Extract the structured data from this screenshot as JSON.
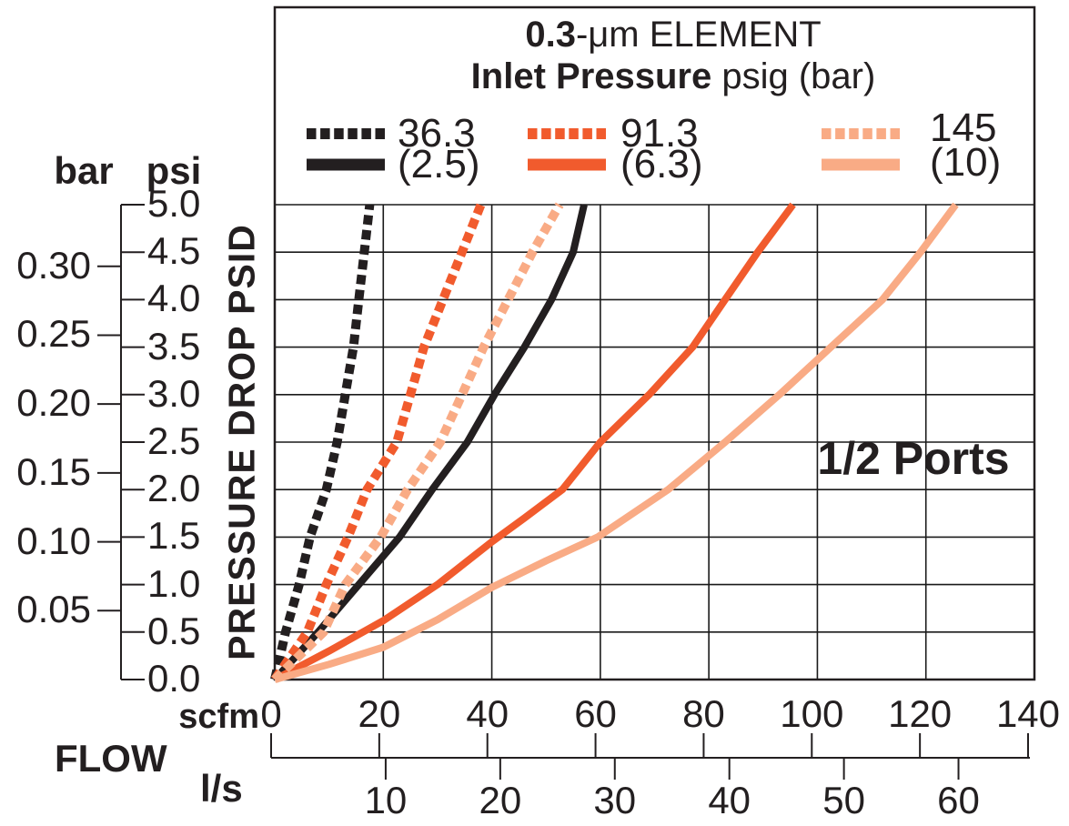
{
  "figure": {
    "title": {
      "bold": "0.3",
      "rest": "-μm ELEMENT"
    },
    "subtitle": {
      "bold": "Inlet Pressure",
      "rest": " psig (bar)"
    },
    "annotation": "1/2 Ports"
  },
  "y_axis": {
    "label": "PRESSURE DROP PSID",
    "primary_unit": "psi",
    "secondary_unit": "bar",
    "psi_ticks": [
      "5.0",
      "4.5",
      "4.0",
      "3.5",
      "3.0",
      "2.5",
      "2.0",
      "1.5",
      "1.0",
      "0.5",
      "0.0"
    ],
    "bar_ticks": [
      "0.30",
      "0.25",
      "0.20",
      "0.15",
      "0.10",
      "0.05"
    ],
    "bar_tick_values": [
      0.3,
      0.25,
      0.2,
      0.15,
      0.1,
      0.05
    ]
  },
  "x_axis": {
    "label": "FLOW",
    "primary_unit": "scfm",
    "secondary_unit": "l/s",
    "scfm_ticks": [
      "0",
      "20",
      "40",
      "60",
      "80",
      "100",
      "120",
      "140"
    ],
    "ls_ticks": [
      "10",
      "20",
      "30",
      "40",
      "50",
      "60"
    ],
    "ls_tick_values": [
      10,
      20,
      30,
      40,
      50,
      60
    ]
  },
  "colors": {
    "black": "#231f20",
    "orange": "#f15b2d",
    "salmon": "#f9ab85",
    "grid": "#1a1a1a"
  },
  "chart_data": {
    "type": "line",
    "title": "0.3-μm ELEMENT",
    "subtitle": "Inlet Pressure psig (bar)",
    "annotation": "1/2 Ports",
    "xlabel": "FLOW",
    "x_units": [
      "scfm",
      "l/s"
    ],
    "ylabel": "PRESSURE DROP PSID",
    "y_units": [
      "psi",
      "bar"
    ],
    "xlim_scfm": [
      0,
      140
    ],
    "ylim_psi": [
      0,
      5
    ],
    "grid": true,
    "legend_position": "top",
    "series": [
      {
        "label": "36.3",
        "inlet_pressure": "36.3 psig",
        "line_style": "dotted",
        "color": "#231f20",
        "points_scfm_psid": [
          [
            0,
            0
          ],
          [
            2,
            0.5
          ],
          [
            4.5,
            1
          ],
          [
            6.5,
            1.5
          ],
          [
            9.5,
            2
          ],
          [
            11.5,
            2.5
          ],
          [
            13,
            3
          ],
          [
            14.5,
            3.5
          ],
          [
            15.5,
            4
          ],
          [
            16.5,
            4.5
          ],
          [
            17.5,
            5
          ]
        ]
      },
      {
        "label": "(2.5)",
        "inlet_pressure": "2.5 bar",
        "line_style": "solid",
        "color": "#231f20",
        "points_scfm_psid": [
          [
            0,
            0
          ],
          [
            8,
            0.5
          ],
          [
            15.5,
            1
          ],
          [
            23,
            1.5
          ],
          [
            29,
            2
          ],
          [
            35.5,
            2.5
          ],
          [
            40.5,
            3
          ],
          [
            46,
            3.5
          ],
          [
            51,
            4
          ],
          [
            55,
            4.5
          ],
          [
            57,
            5
          ]
        ]
      },
      {
        "label": "91.3",
        "inlet_pressure": "91.3 psig",
        "line_style": "dotted",
        "color": "#f15b2d",
        "points_scfm_psid": [
          [
            0,
            0
          ],
          [
            6,
            0.5
          ],
          [
            9.5,
            1
          ],
          [
            13.5,
            1.5
          ],
          [
            17,
            2
          ],
          [
            22.5,
            2.5
          ],
          [
            25,
            3
          ],
          [
            27.5,
            3.5
          ],
          [
            31,
            4
          ],
          [
            34.5,
            4.5
          ],
          [
            38,
            5
          ]
        ]
      },
      {
        "label": "(6.3)",
        "inlet_pressure": "6.3 bar",
        "line_style": "solid",
        "color": "#f15b2d",
        "points_scfm_psid": [
          [
            0,
            0
          ],
          [
            10,
            0.3
          ],
          [
            20,
            0.62
          ],
          [
            30,
            1
          ],
          [
            40,
            1.45
          ],
          [
            46,
            1.7
          ],
          [
            53,
            2
          ],
          [
            60,
            2.5
          ],
          [
            69,
            3
          ],
          [
            77,
            3.5
          ],
          [
            83,
            4
          ],
          [
            89,
            4.5
          ],
          [
            95.5,
            5
          ]
        ]
      },
      {
        "label": "145",
        "inlet_pressure": "145 psig",
        "line_style": "dotted",
        "color": "#f9ab85",
        "points_scfm_psid": [
          [
            0,
            0
          ],
          [
            9,
            0.5
          ],
          [
            13,
            1
          ],
          [
            19.5,
            1.5
          ],
          [
            24.5,
            2
          ],
          [
            30.5,
            2.5
          ],
          [
            34.5,
            3
          ],
          [
            38.5,
            3.5
          ],
          [
            43,
            4
          ],
          [
            47.5,
            4.5
          ],
          [
            52.5,
            5
          ]
        ]
      },
      {
        "label": "(10)",
        "inlet_pressure": "10 bar",
        "line_style": "solid",
        "color": "#f9ab85",
        "points_scfm_psid": [
          [
            0,
            0
          ],
          [
            10,
            0.16
          ],
          [
            20,
            0.34
          ],
          [
            30,
            0.63
          ],
          [
            40,
            0.97
          ],
          [
            50,
            1.25
          ],
          [
            59.5,
            1.5
          ],
          [
            72.5,
            2
          ],
          [
            83,
            2.5
          ],
          [
            93,
            3
          ],
          [
            102.5,
            3.5
          ],
          [
            112,
            4
          ],
          [
            119,
            4.5
          ],
          [
            125.5,
            5
          ]
        ]
      }
    ]
  }
}
